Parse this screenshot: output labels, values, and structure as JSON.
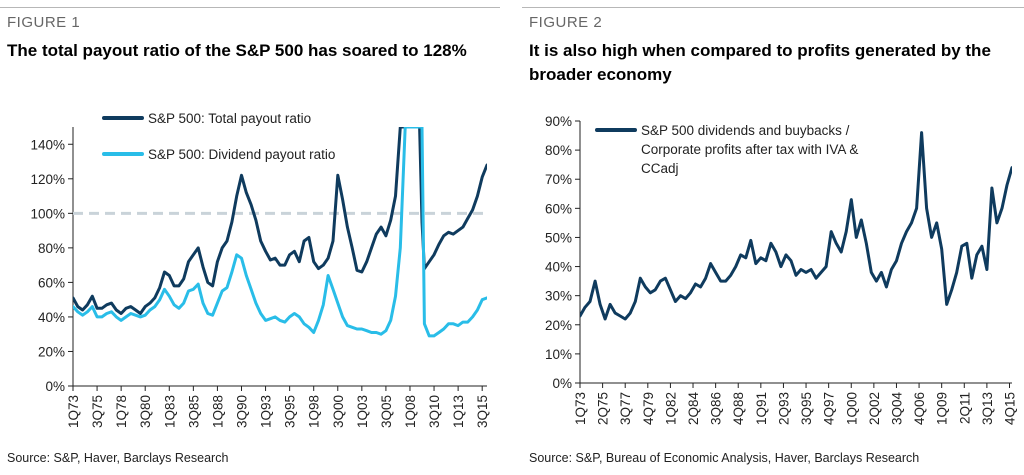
{
  "figure1": {
    "label": "FIGURE 1",
    "title": "The total payout ratio of the S&P 500 has soared to 128%",
    "source": "Source: S&P, Haver, Barclays Research"
  },
  "figure2": {
    "label": "FIGURE 2",
    "title": "It is also high when compared to profits generated by the broader economy",
    "source": "Source: S&P, Bureau of Economic Analysis, Haver, Barclays Research"
  },
  "chart_data": [
    {
      "type": "line",
      "title": "The total payout ratio of the S&P 500 has soared to 128%",
      "ylim": [
        0,
        150
      ],
      "yticks": [
        0,
        20,
        40,
        60,
        80,
        100,
        120,
        140
      ],
      "y_tick_labels": [
        "0%",
        "20%",
        "40%",
        "60%",
        "80%",
        "100%",
        "120%",
        "140%"
      ],
      "xlim": [
        1973.0,
        2016.0
      ],
      "x_tick_labels": [
        "1Q73",
        "3Q75",
        "1Q78",
        "3Q80",
        "1Q83",
        "3Q85",
        "1Q88",
        "3Q90",
        "1Q93",
        "3Q95",
        "1Q98",
        "3Q00",
        "1Q03",
        "3Q05",
        "1Q08",
        "3Q10",
        "1Q13",
        "3Q15"
      ],
      "x_tick_positions": [
        1973.0,
        1975.5,
        1978.0,
        1980.5,
        1983.0,
        1985.5,
        1988.0,
        1990.5,
        1993.0,
        1995.5,
        1998.0,
        2000.5,
        2003.0,
        2005.5,
        2008.0,
        2010.5,
        2013.0,
        2015.5
      ],
      "reference_line": {
        "y": 100,
        "style": "dashed",
        "color": "#c9d3d9"
      },
      "legend_position": "top-left",
      "grid": false,
      "series": [
        {
          "name": "S&P 500: Total payout ratio",
          "color": "#0f3b5e",
          "x": [
            1973.0,
            1973.5,
            1974.0,
            1974.5,
            1975.0,
            1975.5,
            1976.0,
            1976.5,
            1977.0,
            1977.5,
            1978.0,
            1978.5,
            1979.0,
            1979.5,
            1980.0,
            1980.5,
            1981.0,
            1981.5,
            1982.0,
            1982.5,
            1983.0,
            1983.5,
            1984.0,
            1984.5,
            1985.0,
            1985.5,
            1986.0,
            1986.5,
            1987.0,
            1987.5,
            1988.0,
            1988.5,
            1989.0,
            1989.5,
            1990.0,
            1990.5,
            1991.0,
            1991.5,
            1992.0,
            1992.5,
            1993.0,
            1993.5,
            1994.0,
            1994.5,
            1995.0,
            1995.5,
            1996.0,
            1996.5,
            1997.0,
            1997.5,
            1998.0,
            1998.5,
            1999.0,
            1999.5,
            2000.0,
            2000.5,
            2001.0,
            2001.5,
            2002.0,
            2002.5,
            2003.0,
            2003.5,
            2004.0,
            2004.5,
            2005.0,
            2005.5,
            2006.0,
            2006.5,
            2007.0,
            2007.5,
            2008.0,
            2008.25,
            2008.5,
            2008.75,
            2009.0,
            2009.25,
            2009.5,
            2010.0,
            2010.5,
            2011.0,
            2011.5,
            2012.0,
            2012.5,
            2013.0,
            2013.5,
            2014.0,
            2014.5,
            2015.0,
            2015.5,
            2016.0
          ],
          "values": [
            51,
            46,
            44,
            47,
            52,
            45,
            45,
            47,
            48,
            44,
            42,
            45,
            46,
            44,
            42,
            46,
            48,
            51,
            57,
            66,
            64,
            58,
            58,
            62,
            72,
            76,
            80,
            69,
            60,
            58,
            72,
            80,
            84,
            95,
            110,
            122,
            112,
            105,
            96,
            84,
            78,
            73,
            74,
            70,
            70,
            76,
            78,
            72,
            84,
            86,
            72,
            68,
            70,
            74,
            84,
            122,
            108,
            92,
            80,
            67,
            66,
            72,
            80,
            88,
            92,
            87,
            96,
            110,
            150,
            150,
            150,
            150,
            150,
            150,
            150,
            95,
            68,
            72,
            76,
            82,
            87,
            89,
            88,
            90,
            92,
            97,
            102,
            110,
            121,
            128
          ]
        },
        {
          "name": "S&P 500: Dividend payout ratio",
          "color": "#29bde8",
          "x": [
            1973.0,
            1973.5,
            1974.0,
            1974.5,
            1975.0,
            1975.5,
            1976.0,
            1976.5,
            1977.0,
            1977.5,
            1978.0,
            1978.5,
            1979.0,
            1979.5,
            1980.0,
            1980.5,
            1981.0,
            1981.5,
            1982.0,
            1982.5,
            1983.0,
            1983.5,
            1984.0,
            1984.5,
            1985.0,
            1985.5,
            1986.0,
            1986.5,
            1987.0,
            1987.5,
            1988.0,
            1988.5,
            1989.0,
            1989.5,
            1990.0,
            1990.5,
            1991.0,
            1991.5,
            1992.0,
            1992.5,
            1993.0,
            1993.5,
            1994.0,
            1994.5,
            1995.0,
            1995.5,
            1996.0,
            1996.5,
            1997.0,
            1997.5,
            1998.0,
            1998.5,
            1999.0,
            1999.5,
            2000.0,
            2000.5,
            2001.0,
            2001.5,
            2002.0,
            2002.5,
            2003.0,
            2003.5,
            2004.0,
            2004.5,
            2005.0,
            2005.5,
            2006.0,
            2006.5,
            2007.0,
            2007.5,
            2008.0,
            2008.25,
            2008.5,
            2008.75,
            2009.0,
            2009.25,
            2009.5,
            2010.0,
            2010.5,
            2011.0,
            2011.5,
            2012.0,
            2012.5,
            2013.0,
            2013.5,
            2014.0,
            2014.5,
            2015.0,
            2015.5,
            2016.0
          ],
          "values": [
            46,
            43,
            41,
            43,
            46,
            40,
            40,
            42,
            43,
            40,
            38,
            40,
            42,
            41,
            40,
            41,
            44,
            46,
            50,
            56,
            52,
            47,
            45,
            48,
            55,
            56,
            59,
            48,
            42,
            41,
            48,
            55,
            57,
            66,
            76,
            74,
            64,
            56,
            48,
            42,
            38,
            39,
            40,
            38,
            37,
            40,
            42,
            40,
            36,
            34,
            31,
            38,
            47,
            64,
            56,
            48,
            40,
            35,
            34,
            33,
            33,
            32,
            31,
            31,
            30,
            32,
            38,
            52,
            80,
            150,
            150,
            150,
            150,
            150,
            150,
            150,
            36,
            29,
            29,
            31,
            33,
            36,
            36,
            35,
            37,
            37,
            40,
            44,
            50,
            51
          ]
        }
      ]
    },
    {
      "type": "line",
      "title": "It is also high when compared to profits generated by the broader economy",
      "ylim": [
        0,
        90
      ],
      "yticks": [
        0,
        10,
        20,
        30,
        40,
        50,
        60,
        70,
        80,
        90
      ],
      "y_tick_labels": [
        "0%",
        "10%",
        "20%",
        "30%",
        "40%",
        "50%",
        "60%",
        "70%",
        "80%",
        "90%"
      ],
      "xlim": [
        1973.0,
        2016.0
      ],
      "x_tick_labels": [
        "1Q73",
        "2Q75",
        "3Q77",
        "4Q79",
        "1Q82",
        "2Q84",
        "3Q86",
        "4Q88",
        "1Q91",
        "2Q93",
        "3Q95",
        "4Q97",
        "1Q00",
        "2Q02",
        "3Q04",
        "4Q06",
        "1Q09",
        "2Q11",
        "3Q13",
        "4Q15"
      ],
      "x_tick_positions": [
        1973.0,
        1975.25,
        1977.5,
        1979.75,
        1982.0,
        1984.25,
        1986.5,
        1988.75,
        1991.0,
        1993.25,
        1995.5,
        1997.75,
        2000.0,
        2002.25,
        2004.5,
        2006.75,
        2009.0,
        2011.25,
        2013.5,
        2015.75
      ],
      "legend_position": "top-left",
      "grid": false,
      "series": [
        {
          "name": "S&P 500 dividends and buybacks / Corporate profits after tax with IVA & CCadj",
          "color": "#0f3b5e",
          "x": [
            1973.0,
            1973.5,
            1974.0,
            1974.5,
            1975.0,
            1975.5,
            1976.0,
            1976.5,
            1977.0,
            1977.5,
            1978.0,
            1978.5,
            1979.0,
            1979.5,
            1980.0,
            1980.5,
            1981.0,
            1981.5,
            1982.0,
            1982.5,
            1983.0,
            1983.5,
            1984.0,
            1984.5,
            1985.0,
            1985.5,
            1986.0,
            1986.5,
            1987.0,
            1987.5,
            1988.0,
            1988.5,
            1989.0,
            1989.5,
            1990.0,
            1990.5,
            1991.0,
            1991.5,
            1992.0,
            1992.5,
            1993.0,
            1993.5,
            1994.0,
            1994.5,
            1995.0,
            1995.5,
            1996.0,
            1996.5,
            1997.0,
            1997.5,
            1998.0,
            1998.5,
            1999.0,
            1999.5,
            2000.0,
            2000.5,
            2001.0,
            2001.5,
            2002.0,
            2002.5,
            2003.0,
            2003.5,
            2004.0,
            2004.5,
            2005.0,
            2005.5,
            2006.0,
            2006.5,
            2007.0,
            2007.5,
            2008.0,
            2008.5,
            2009.0,
            2009.5,
            2010.0,
            2010.5,
            2011.0,
            2011.5,
            2012.0,
            2012.5,
            2013.0,
            2013.5,
            2014.0,
            2014.5,
            2015.0,
            2015.5,
            2016.0
          ],
          "values": [
            23,
            26,
            28,
            35,
            27,
            22,
            27,
            24,
            23,
            22,
            24,
            28,
            36,
            33,
            31,
            32,
            35,
            36,
            32,
            28,
            30,
            29,
            31,
            34,
            33,
            36,
            41,
            38,
            35,
            35,
            37,
            40,
            44,
            43,
            49,
            41,
            43,
            42,
            48,
            45,
            40,
            44,
            42,
            37,
            39,
            38,
            39,
            36,
            38,
            40,
            52,
            48,
            45,
            52,
            63,
            50,
            56,
            48,
            38,
            35,
            38,
            33,
            39,
            42,
            48,
            52,
            55,
            60,
            86,
            60,
            50,
            55,
            46,
            27,
            32,
            38,
            47,
            48,
            36,
            44,
            47,
            39,
            67,
            55,
            60,
            68,
            74
          ]
        }
      ]
    }
  ]
}
